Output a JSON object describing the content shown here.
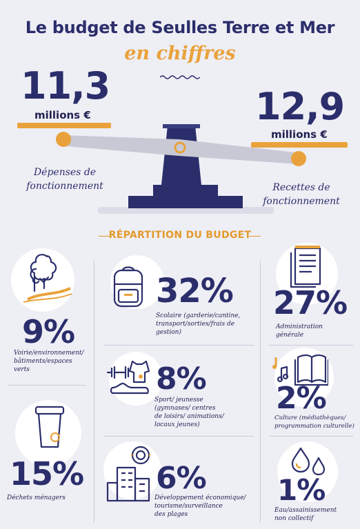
{
  "header": {
    "title": "Le budget de Seulles Terre et Mer",
    "subtitle": "en chiffres"
  },
  "balance": {
    "left_value": "11,3",
    "left_unit": "millions €",
    "left_label_1": "Dépenses de",
    "left_label_2": "fonctionnement",
    "right_value": "12,9",
    "right_unit": "millions €",
    "right_label_1": "Recettes de",
    "right_label_2": "fonctionnement"
  },
  "section_title": "RÉPARTITION DU BUDGET",
  "chart_data": {
    "type": "table",
    "title": "RÉPARTITION DU BUDGET",
    "unit": "%",
    "items": [
      {
        "value": 9,
        "display": "9%",
        "label_lines": [
          "Voirie/environnement/",
          "bâtiments/espaces",
          "verts"
        ]
      },
      {
        "value": 32,
        "display": "32%",
        "label_lines": [
          "Scolaire (garderie/cantine,",
          "transport/sorties/frais de",
          "gestion)"
        ]
      },
      {
        "value": 27,
        "display": "27%",
        "label_lines": [
          "Administration",
          "générale"
        ]
      },
      {
        "value": 8,
        "display": "8%",
        "label_lines": [
          "Sport/ jeunesse",
          "(gymnases/ centres",
          "de loisirs/ animations/",
          "locaux jeunes)"
        ]
      },
      {
        "value": 2,
        "display": "2%",
        "label_lines": [
          "Culture (médiathèques/",
          "programmation culturelle)"
        ]
      },
      {
        "value": 15,
        "display": "15%",
        "label_lines": [
          "Déchets ménagers"
        ]
      },
      {
        "value": 6,
        "display": "6%",
        "label_lines": [
          "Développement économique/",
          "tourisme/surveillance",
          "des plages"
        ]
      },
      {
        "value": 1,
        "display": "1%",
        "label_lines": [
          "Eau/assainissement",
          "non collectif"
        ]
      }
    ]
  },
  "colors": {
    "navy": "#2b2e6b",
    "orange": "#e9a23b",
    "background": "#eeeef5"
  },
  "icons": [
    "trees-path-icon",
    "backpack-icon",
    "document-icon",
    "sport-icon",
    "books-music-icon",
    "bin-icon",
    "buildings-icon",
    "water-drops-icon"
  ]
}
